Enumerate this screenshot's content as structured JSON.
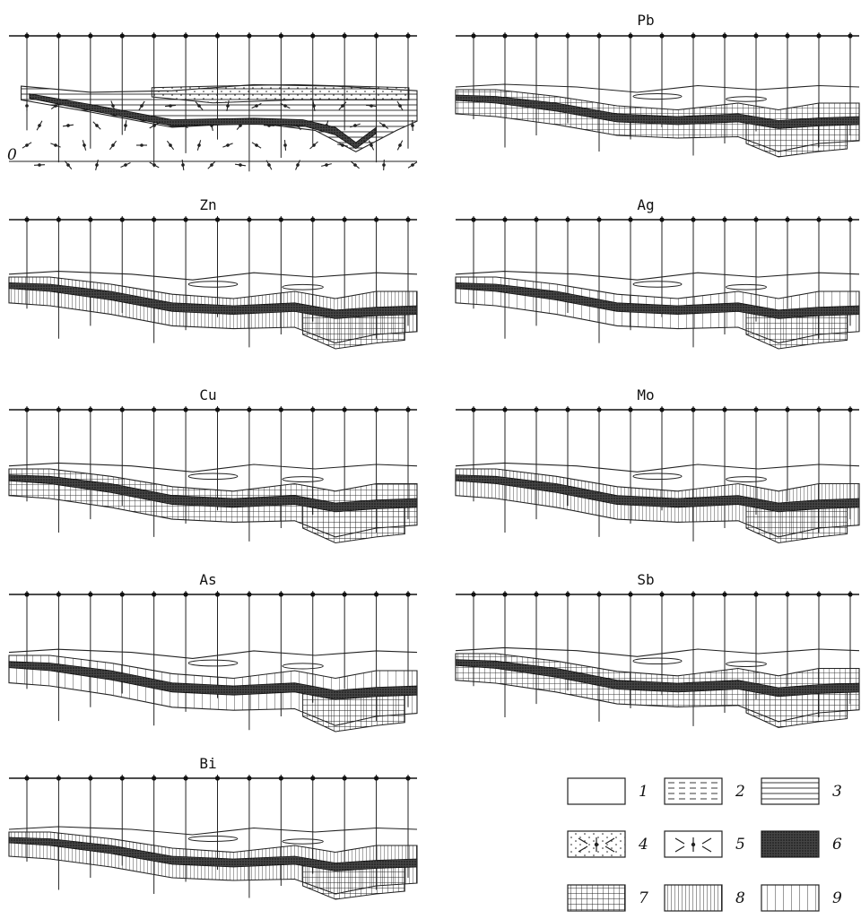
{
  "figure": {
    "base_section": {
      "depth_marker": "0"
    },
    "panels": [
      {
        "id": "pb",
        "element": "Pb"
      },
      {
        "id": "zn",
        "element": "Zn"
      },
      {
        "id": "ag",
        "element": "Ag"
      },
      {
        "id": "cu",
        "element": "Cu"
      },
      {
        "id": "mo",
        "element": "Mo"
      },
      {
        "id": "as",
        "element": "As"
      },
      {
        "id": "sb",
        "element": "Sb"
      },
      {
        "id": "bi",
        "element": "Bi"
      }
    ],
    "legend": [
      {
        "number": "1",
        "pattern": "blank"
      },
      {
        "number": "2",
        "pattern": "dashed-lines"
      },
      {
        "number": "3",
        "pattern": "horizontal-lines"
      },
      {
        "number": "4",
        "pattern": "dotted-arrows"
      },
      {
        "number": "5",
        "pattern": "arrows"
      },
      {
        "number": "6",
        "pattern": "dense-dark"
      },
      {
        "number": "7",
        "pattern": "grid"
      },
      {
        "number": "8",
        "pattern": "dense-vertical"
      },
      {
        "number": "9",
        "pattern": "sparse-vertical"
      }
    ]
  }
}
